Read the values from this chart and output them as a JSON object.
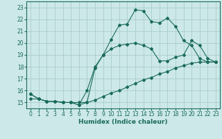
{
  "background_color": "#cce8e8",
  "grid_color": "#aacccc",
  "line_color": "#1a6b5a",
  "xlabel": "Humidex (Indice chaleur)",
  "xlim": [
    -0.5,
    23.5
  ],
  "ylim": [
    14.5,
    23.5
  ],
  "yticks": [
    15,
    16,
    17,
    18,
    19,
    20,
    21,
    22,
    23
  ],
  "xticks": [
    0,
    1,
    2,
    3,
    4,
    5,
    6,
    7,
    8,
    9,
    10,
    11,
    12,
    13,
    14,
    15,
    16,
    17,
    18,
    19,
    20,
    21,
    22,
    23
  ],
  "line1_x": [
    0,
    1,
    2,
    3,
    4,
    5,
    6,
    7,
    8,
    9,
    10,
    11,
    12,
    13,
    14,
    15,
    16,
    17,
    18,
    19,
    20,
    21,
    22,
    23
  ],
  "line1_y": [
    15.7,
    15.3,
    15.1,
    15.1,
    15.0,
    15.0,
    14.8,
    15.0,
    17.9,
    19.0,
    20.3,
    21.5,
    21.6,
    22.8,
    22.7,
    21.8,
    21.7,
    22.1,
    21.4,
    20.2,
    19.8,
    18.7,
    18.4,
    18.4
  ],
  "line2_x": [
    0,
    1,
    2,
    3,
    4,
    5,
    6,
    7,
    8,
    9,
    10,
    11,
    12,
    13,
    14,
    15,
    16,
    17,
    18,
    19,
    20,
    21,
    22,
    23
  ],
  "line2_y": [
    15.7,
    15.3,
    15.1,
    15.1,
    15.0,
    15.0,
    14.8,
    16.0,
    18.0,
    19.0,
    19.5,
    19.8,
    19.9,
    20.0,
    19.8,
    19.5,
    18.5,
    18.5,
    18.8,
    19.0,
    20.2,
    19.8,
    18.7,
    18.4
  ],
  "line3_x": [
    0,
    1,
    2,
    3,
    4,
    5,
    6,
    7,
    8,
    9,
    10,
    11,
    12,
    13,
    14,
    15,
    16,
    17,
    18,
    19,
    20,
    21,
    22,
    23
  ],
  "line3_y": [
    15.3,
    15.3,
    15.1,
    15.1,
    15.0,
    15.0,
    15.0,
    15.0,
    15.2,
    15.5,
    15.8,
    16.0,
    16.3,
    16.6,
    16.9,
    17.1,
    17.4,
    17.6,
    17.9,
    18.1,
    18.3,
    18.4,
    18.4,
    18.4
  ]
}
